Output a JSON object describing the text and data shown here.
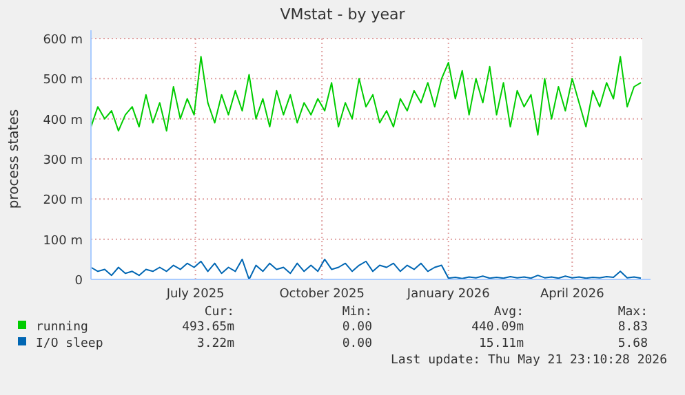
{
  "chart_data": {
    "type": "line",
    "title": "VMstat - by year",
    "ylabel": "process states",
    "x": [
      "2025-04-16",
      "2025-04-21",
      "2025-04-26",
      "2025-05-01",
      "2025-05-06",
      "2025-05-11",
      "2025-05-16",
      "2025-05-21",
      "2025-05-26",
      "2025-05-31",
      "2025-06-05",
      "2025-06-10",
      "2025-06-15",
      "2025-06-20",
      "2025-06-25",
      "2025-06-30",
      "2025-07-05",
      "2025-07-10",
      "2025-07-15",
      "2025-07-20",
      "2025-07-25",
      "2025-07-30",
      "2025-08-04",
      "2025-08-09",
      "2025-08-14",
      "2025-08-19",
      "2025-08-24",
      "2025-08-29",
      "2025-09-03",
      "2025-09-08",
      "2025-09-13",
      "2025-09-18",
      "2025-09-23",
      "2025-09-28",
      "2025-10-03",
      "2025-10-08",
      "2025-10-13",
      "2025-10-18",
      "2025-10-23",
      "2025-10-28",
      "2025-11-02",
      "2025-11-07",
      "2025-11-12",
      "2025-11-17",
      "2025-11-22",
      "2025-11-27",
      "2025-12-02",
      "2025-12-07",
      "2025-12-12",
      "2025-12-17",
      "2025-12-22",
      "2025-12-27",
      "2026-01-01",
      "2026-01-06",
      "2026-01-11",
      "2026-01-16",
      "2026-01-21",
      "2026-01-26",
      "2026-01-31",
      "2026-02-05",
      "2026-02-10",
      "2026-02-15",
      "2026-02-20",
      "2026-02-25",
      "2026-03-02",
      "2026-03-07",
      "2026-03-12",
      "2026-03-17",
      "2026-03-22",
      "2026-03-27",
      "2026-04-01",
      "2026-04-06",
      "2026-04-11",
      "2026-04-16",
      "2026-04-21",
      "2026-04-26",
      "2026-05-01",
      "2026-05-06",
      "2026-05-11",
      "2026-05-16",
      "2026-05-21"
    ],
    "series": [
      {
        "name": "running",
        "color": "#00cc00",
        "values": [
          380,
          430,
          400,
          420,
          370,
          410,
          430,
          380,
          460,
          390,
          440,
          370,
          480,
          400,
          450,
          410,
          555,
          440,
          390,
          460,
          410,
          470,
          420,
          510,
          400,
          450,
          380,
          470,
          410,
          460,
          390,
          440,
          410,
          450,
          420,
          490,
          380,
          440,
          400,
          500,
          430,
          460,
          390,
          420,
          380,
          450,
          420,
          470,
          440,
          490,
          430,
          500,
          540,
          450,
          520,
          410,
          500,
          440,
          530,
          410,
          490,
          380,
          470,
          430,
          460,
          360,
          500,
          400,
          480,
          420,
          500,
          440,
          380,
          470,
          430,
          490,
          450,
          555,
          430,
          480,
          490
        ]
      },
      {
        "name": "I/O sleep",
        "color": "#0066b3",
        "values": [
          30,
          20,
          25,
          10,
          30,
          15,
          20,
          10,
          25,
          20,
          30,
          20,
          35,
          25,
          40,
          30,
          45,
          20,
          40,
          15,
          30,
          20,
          50,
          0,
          35,
          20,
          40,
          25,
          30,
          15,
          40,
          20,
          35,
          20,
          50,
          25,
          30,
          40,
          20,
          35,
          45,
          20,
          35,
          30,
          40,
          20,
          35,
          25,
          40,
          20,
          30,
          35,
          3,
          5,
          2,
          6,
          4,
          8,
          3,
          5,
          3,
          7,
          4,
          6,
          3,
          10,
          4,
          6,
          3,
          8,
          4,
          6,
          3,
          5,
          4,
          7,
          5,
          20,
          4,
          6,
          3
        ]
      }
    ],
    "xlim": [
      "2025-04-16",
      "2026-05-21T23:10"
    ],
    "xticks": [
      {
        "value": "2025-07-01",
        "label": "July 2025"
      },
      {
        "value": "2025-10-01",
        "label": "October 2025"
      },
      {
        "value": "2026-01-01",
        "label": "January 2026"
      },
      {
        "value": "2026-04-01",
        "label": "April 2026"
      }
    ],
    "ylim": [
      0,
      600
    ],
    "yticks": [
      0,
      {
        "value": 100,
        "label": "100 m"
      },
      {
        "value": 200,
        "label": "200 m"
      },
      {
        "value": 300,
        "label": "300 m"
      },
      {
        "value": 400,
        "label": "400 m"
      },
      {
        "value": 500,
        "label": "500 m"
      },
      {
        "value": 600,
        "label": "600 m"
      }
    ],
    "grid": true,
    "legend": "bottom",
    "line_style": "solid",
    "marker": "none",
    "annotations": [
      "Cur:",
      "Min:",
      "Avg:",
      "Max:",
      "493.65m",
      "0.00",
      "440.09m",
      "8.83",
      "3.22m",
      "0.00",
      "15.11m",
      "5.68",
      "Last update: Thu May 21 23:10:28 2026"
    ]
  }
}
